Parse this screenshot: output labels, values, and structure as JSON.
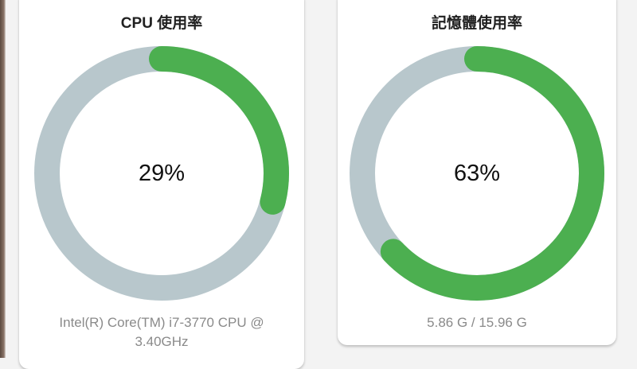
{
  "colors": {
    "accent": "#4caf50",
    "track": "#b8c7cc",
    "background": "#f3f3f3"
  },
  "cpu": {
    "title": "CPU 使用率",
    "value_text": "29%",
    "level": 0.29,
    "detail_line1": "Intel(R) Core(TM) i7-3770 CPU @",
    "detail_line2": "3.40GHz"
  },
  "memory": {
    "title": "記憶體使用率",
    "value_text": "63%",
    "level": 0.63,
    "detail": "5.86 G / 15.96 G"
  }
}
